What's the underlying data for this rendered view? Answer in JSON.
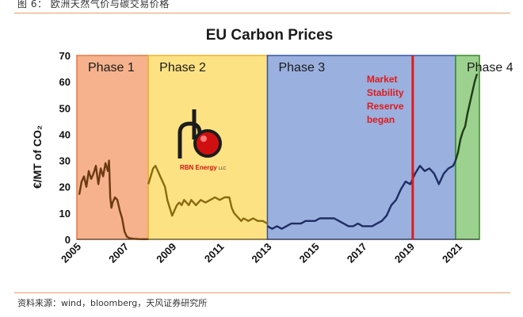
{
  "caption": "图 6： 欧洲天然气价与碳交易价格",
  "source": "资料来源：wind，bloomberg，天风证券研究所",
  "colors": {
    "phase1": "#f6b28d",
    "phase2": "#fde283",
    "phase3": "#9ab0df",
    "phase4": "#9cd18f",
    "phase1_line": "#6b3b12",
    "phase2_line": "#8a6b10",
    "phase3_line": "#1e2d63",
    "phase4_line": "#1f3c16",
    "marker": "#e01b1b"
  },
  "logo": {
    "text": "RBN Energy",
    "suffix": "LLC",
    "icon": "rbn-energy-logo-icon"
  },
  "chart_data": {
    "type": "line",
    "title": "EU Carbon Prices",
    "ylabel": "€/MT of CO₂",
    "xlabel": "",
    "ylim": [
      0,
      70
    ],
    "xlim": [
      2005,
      2021.9
    ],
    "yticks": [
      "0",
      "10",
      "20",
      "30",
      "40",
      "50",
      "60",
      "70"
    ],
    "xticks": [
      {
        "value": 2005,
        "label": "2005"
      },
      {
        "value": 2007,
        "label": "2007"
      },
      {
        "value": 2009,
        "label": "2009"
      },
      {
        "value": 2011,
        "label": "2011"
      },
      {
        "value": 2013,
        "label": "2013"
      },
      {
        "value": 2015,
        "label": "2015"
      },
      {
        "value": 2017,
        "label": "2017"
      },
      {
        "value": 2019,
        "label": "2019"
      },
      {
        "value": 2021,
        "label": "2021"
      }
    ],
    "phases": [
      {
        "label": "Phase 1",
        "start": 2005,
        "end": 2008
      },
      {
        "label": "Phase 2",
        "start": 2008,
        "end": 2013
      },
      {
        "label": "Phase 3",
        "start": 2013,
        "end": 2020.9
      },
      {
        "label": "Phase 4",
        "start": 2020.9,
        "end": 2021.9
      }
    ],
    "annotations": [
      {
        "lines": [
          "Market",
          "Stability",
          "Reserve",
          "began"
        ],
        "x": 2019.1
      }
    ],
    "series": [
      {
        "phase": "Phase 1",
        "x": [
          2005.1,
          2005.2,
          2005.3,
          2005.4,
          2005.5,
          2005.6,
          2005.7,
          2005.8,
          2005.9,
          2006.0,
          2006.1,
          2006.2,
          2006.3,
          2006.35,
          2006.4,
          2006.45,
          2006.5,
          2006.6,
          2006.7,
          2006.8,
          2006.9,
          2007.0,
          2007.1,
          2007.2,
          2007.3,
          2007.4,
          2007.6,
          2007.8,
          2008.0
        ],
        "y": [
          17,
          22,
          24,
          20,
          26,
          23,
          25,
          28,
          21,
          27,
          24,
          29,
          26,
          30,
          16,
          12,
          14,
          16,
          15,
          11,
          8,
          3,
          1,
          0.5,
          0.3,
          0.2,
          0.1,
          0.05,
          0.05
        ]
      },
      {
        "phase": "Phase 2",
        "x": [
          2008.0,
          2008.1,
          2008.2,
          2008.3,
          2008.4,
          2008.5,
          2008.6,
          2008.7,
          2008.8,
          2008.9,
          2009.0,
          2009.1,
          2009.2,
          2009.3,
          2009.4,
          2009.5,
          2009.6,
          2009.7,
          2009.8,
          2009.9,
          2010.0,
          2010.2,
          2010.4,
          2010.6,
          2010.8,
          2011.0,
          2011.2,
          2011.4,
          2011.5,
          2011.6,
          2011.7,
          2011.8,
          2011.9,
          2012.0,
          2012.2,
          2012.4,
          2012.6,
          2012.8,
          2013.0
        ],
        "y": [
          21,
          24,
          27,
          28,
          26,
          24,
          22,
          20,
          15,
          12,
          9,
          11,
          13,
          14,
          13,
          15,
          14,
          13,
          15,
          14,
          13,
          15,
          14,
          15,
          16,
          15,
          16,
          16,
          12,
          10,
          9,
          8,
          7,
          8,
          7,
          8,
          7,
          7,
          6
        ]
      },
      {
        "phase": "Phase 3",
        "x": [
          2013.0,
          2013.2,
          2013.4,
          2013.6,
          2013.8,
          2014.0,
          2014.2,
          2014.4,
          2014.6,
          2014.8,
          2015.0,
          2015.2,
          2015.4,
          2015.6,
          2015.8,
          2016.0,
          2016.2,
          2016.4,
          2016.6,
          2016.8,
          2017.0,
          2017.2,
          2017.4,
          2017.6,
          2017.8,
          2018.0,
          2018.2,
          2018.4,
          2018.6,
          2018.8,
          2019.0,
          2019.2,
          2019.4,
          2019.6,
          2019.8,
          2020.0,
          2020.2,
          2020.4,
          2020.6,
          2020.8,
          2020.9
        ],
        "y": [
          5,
          4,
          5,
          4,
          5,
          6,
          6,
          6,
          7,
          7,
          7,
          8,
          8,
          8,
          8,
          7,
          6,
          5,
          5,
          6,
          5,
          5,
          5,
          6,
          7,
          9,
          13,
          15,
          19,
          22,
          21,
          25,
          28,
          26,
          27,
          25,
          21,
          25,
          27,
          28,
          30
        ]
      },
      {
        "phase": "Phase 4",
        "x": [
          2020.9,
          2021.0,
          2021.1,
          2021.2,
          2021.3,
          2021.4,
          2021.5,
          2021.6,
          2021.7,
          2021.8
        ],
        "y": [
          30,
          33,
          38,
          41,
          43,
          48,
          52,
          56,
          60,
          63
        ]
      }
    ]
  }
}
